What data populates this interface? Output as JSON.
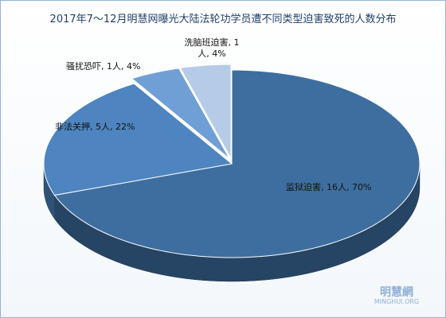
{
  "chart_data": {
    "type": "pie",
    "title": "2017年7～12月明慧网曝光大陆法轮功学员遭不同类型迫害致死的人数分布",
    "values": [
      16,
      5,
      1,
      1
    ],
    "value_labels": [
      "监狱迫害, 16人, 70%",
      "非法关押, 5人, 22%",
      "骚扰恐吓, 1人, 4%",
      "洗脑班迫害, 1人, 4%"
    ],
    "colors": [
      "#3e6e9f",
      "#4e84bf",
      "#6f9fd4",
      "#b6cbe7"
    ]
  },
  "watermark": {
    "name": "明慧網",
    "site": "MINGHUI.ORG"
  }
}
